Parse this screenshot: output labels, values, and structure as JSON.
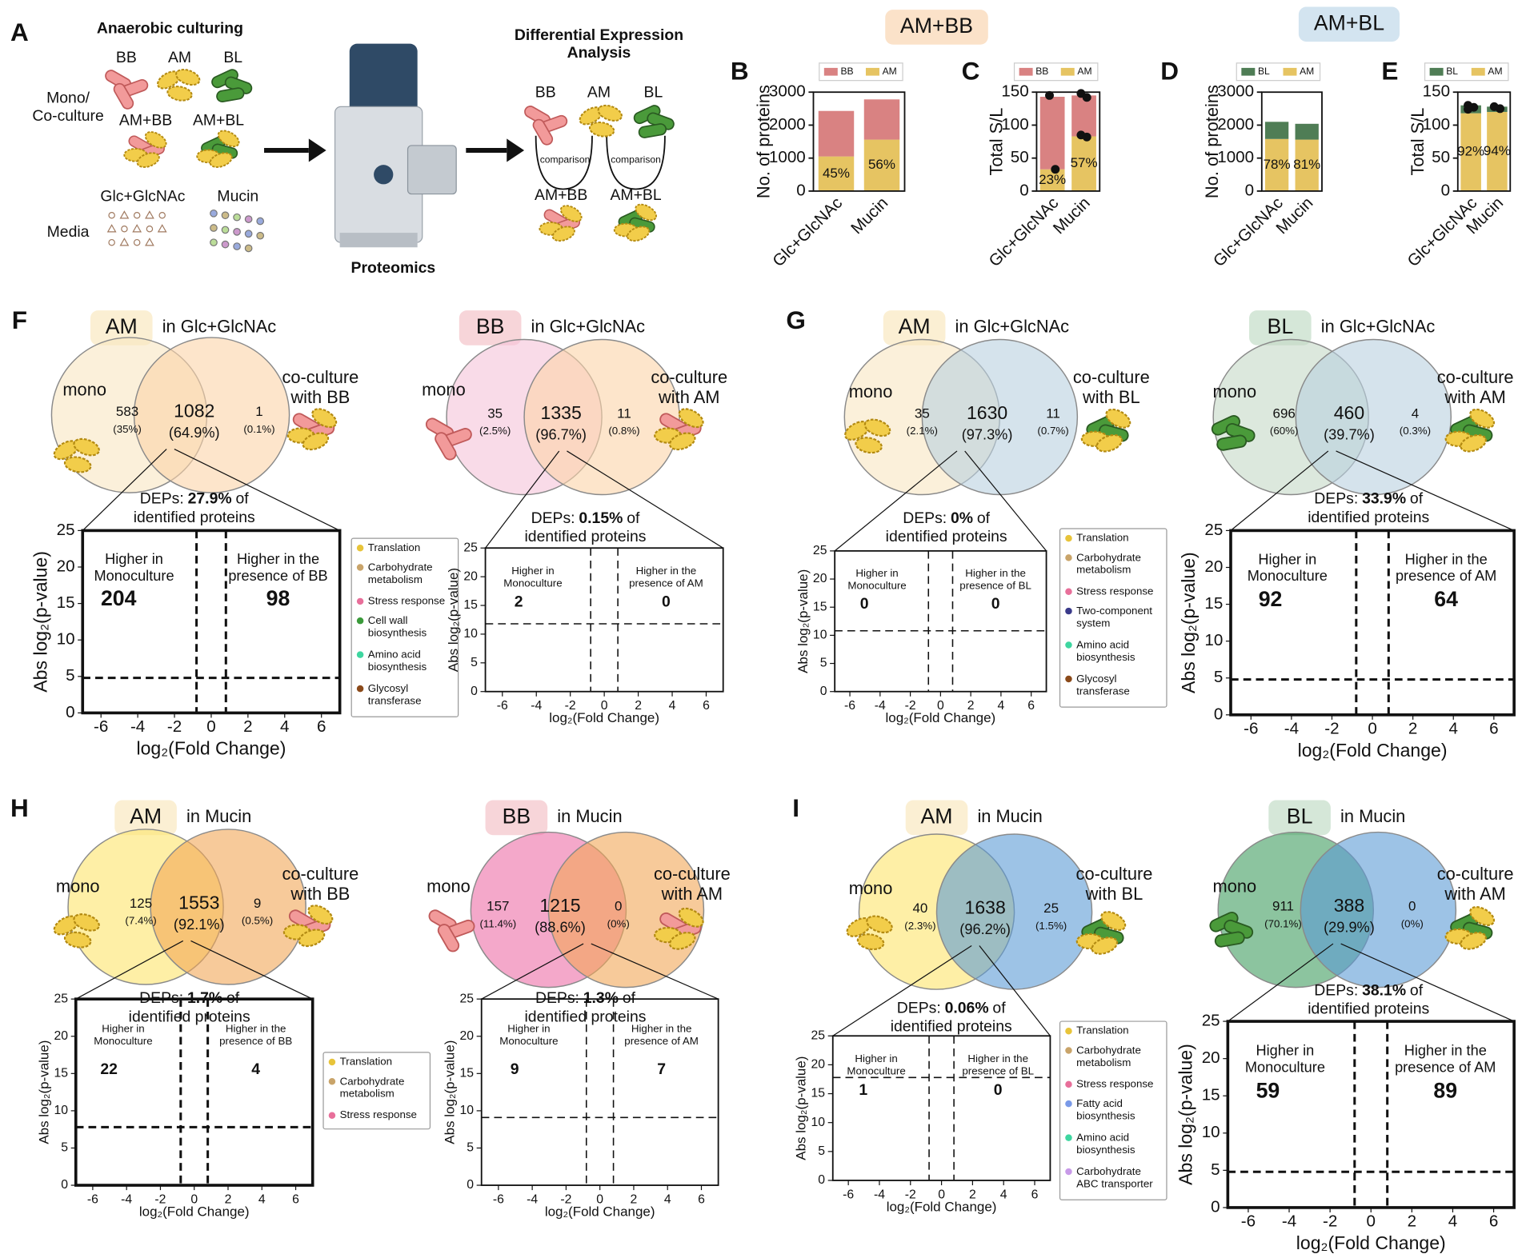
{
  "panel_letters": [
    "A",
    "B",
    "C",
    "D",
    "E",
    "F",
    "G",
    "H",
    "I"
  ],
  "headers": [
    "AM+BB",
    "AM+BL"
  ],
  "panel_a": {
    "culturing_title": "Anaerobic culturing",
    "mono_labels": [
      "BB",
      "AM",
      "BL"
    ],
    "culture_label": "Mono/\nCo-culture",
    "co_labels": [
      "AM+BB",
      "AM+BL"
    ],
    "media_labels": [
      "Glc+GlcNAc",
      "Mucin"
    ],
    "media_label": "Media",
    "proteomics": "Proteomics",
    "dea_title": "Differential Expression\nAnalysis",
    "dea_mono": [
      "BB",
      "AM",
      "BL"
    ],
    "comparison": [
      "comparison",
      "comparison"
    ],
    "dea_co": [
      "AM+BB",
      "AM+BL"
    ]
  },
  "chart_data": [
    {
      "type": "bar",
      "ylabel": "No. of proteins",
      "categories": [
        "Glc+GlcNAc",
        "Mucin"
      ],
      "series": [
        {
          "name": "BB",
          "color": "#d98282",
          "values": [
            1380,
            1220
          ]
        },
        {
          "name": "AM",
          "color": "#e6c462",
          "values": [
            1050,
            1560
          ]
        }
      ],
      "percent_labels": [
        "45%",
        "56%"
      ],
      "ylim": [
        0,
        3000
      ],
      "yticks": [
        0,
        1000,
        2000,
        3000
      ]
    },
    {
      "type": "bar",
      "ylabel": "Total S/L",
      "categories": [
        "Glc+GlcNAc",
        "Mucin"
      ],
      "series": [
        {
          "name": "BB",
          "color": "#d98282",
          "values": [
            110,
            62
          ]
        },
        {
          "name": "AM",
          "color": "#e6c462",
          "values": [
            33,
            83
          ]
        }
      ],
      "percent_labels": [
        "23%",
        "57%"
      ],
      "replicates": [
        [
          145,
          33
        ],
        [
          148,
          142,
          85,
          82
        ]
      ],
      "ylim": [
        0,
        150
      ],
      "yticks": [
        0,
        50,
        100,
        150
      ]
    },
    {
      "type": "bar",
      "ylabel": "No. of proteins",
      "categories": [
        "Glc+GlcNAc",
        "Mucin"
      ],
      "series": [
        {
          "name": "BL",
          "color": "#4f7d55",
          "values": [
            520,
            480
          ]
        },
        {
          "name": "AM",
          "color": "#e6c462",
          "values": [
            1580,
            1560
          ]
        }
      ],
      "percent_labels": [
        "78%",
        "81%"
      ],
      "ylim": [
        0,
        3000
      ],
      "yticks": [
        0,
        1000,
        2000,
        3000
      ]
    },
    {
      "type": "bar",
      "ylabel": "Total S/L",
      "categories": [
        "Glc+GlcNAc",
        "Mucin"
      ],
      "series": [
        {
          "name": "BL",
          "color": "#4f7d55",
          "values": [
            12,
            8
          ]
        },
        {
          "name": "AM",
          "color": "#e6c462",
          "values": [
            118,
            120
          ]
        }
      ],
      "percent_labels": [
        "92%",
        "94%"
      ],
      "replicates": [
        [
          130,
          127,
          124
        ],
        [
          128,
          125
        ]
      ],
      "ylim": [
        0,
        150
      ],
      "yticks": [
        0,
        50,
        100,
        150
      ]
    },
    {
      "type": "volcano",
      "xlabel": "log₂(Fold Change)",
      "ylabel": "Abs log₂(p-value)",
      "xlim": [
        -7,
        7
      ],
      "xticks": [
        -6,
        -4,
        -2,
        0,
        2,
        4,
        6
      ],
      "ylim": [
        0,
        25
      ],
      "yticks": [
        0,
        5,
        10,
        15,
        20,
        25
      ],
      "fc_thresholds": [
        -0.8,
        0.8
      ],
      "p_threshold": 4.8,
      "annotations": {
        "left": "Higher in\nMonoculture",
        "right": "Higher in the\npresence of BB",
        "left_count": 204,
        "right_count": 98
      },
      "legend": [
        {
          "name": "Translation",
          "color": "#e8c43a"
        },
        {
          "name": "Carbohydrate\nmetabolism",
          "color": "#c9a46a"
        },
        {
          "name": "Stress response",
          "color": "#e86f9a"
        },
        {
          "name": "Cell wall\nbiosynthesis",
          "color": "#3a9a3a"
        },
        {
          "name": "Amino acid\nbiosynthesis",
          "color": "#3ed6a0"
        },
        {
          "name": "Glycosyl\ntransferase",
          "color": "#8b4a1a"
        }
      ]
    },
    {
      "type": "volcano",
      "xlabel": "log₂(Fold Change)",
      "ylabel": "Abs log₂(p-value)",
      "xlim": [
        -7,
        7
      ],
      "xticks": [
        -6,
        -4,
        -2,
        0,
        2,
        4,
        6
      ],
      "ylim": [
        0,
        25
      ],
      "yticks": [
        0,
        5,
        10,
        15,
        20,
        25
      ],
      "fc_thresholds": [
        -0.8,
        0.8
      ],
      "p_threshold": 11.8,
      "annotations": {
        "left": "Higher in\nMonoculture",
        "right": "Higher in the\npresence of AM",
        "left_count": 2,
        "right_count": 0
      }
    },
    {
      "type": "volcano",
      "xlabel": "log₂(Fold Change)",
      "ylabel": "Abs log₂(p-value)",
      "xlim": [
        -7,
        7
      ],
      "xticks": [
        -6,
        -4,
        -2,
        0,
        2,
        4,
        6
      ],
      "ylim": [
        0,
        25
      ],
      "yticks": [
        0,
        5,
        10,
        15,
        20,
        25
      ],
      "fc_thresholds": [
        -0.8,
        0.8
      ],
      "p_threshold": 10.8,
      "annotations": {
        "left": "Higher in\nMonoculture",
        "right": "Higher in the\npresence of BL",
        "left_count": 0,
        "right_count": 0
      },
      "legend": [
        {
          "name": "Translation",
          "color": "#e8c43a"
        },
        {
          "name": "Carbohydrate\nmetabolism",
          "color": "#c9a46a"
        },
        {
          "name": "Stress response",
          "color": "#e86f9a"
        },
        {
          "name": "Two-component\nsystem",
          "color": "#3a3a8a"
        },
        {
          "name": "Amino acid\nbiosynthesis",
          "color": "#3ed6a0"
        },
        {
          "name": "Glycosyl\ntransferase",
          "color": "#8b4a1a"
        }
      ]
    },
    {
      "type": "volcano",
      "xlabel": "log₂(Fold Change)",
      "ylabel": "Abs log₂(p-value)",
      "xlim": [
        -7,
        7
      ],
      "xticks": [
        -6,
        -4,
        -2,
        0,
        2,
        4,
        6
      ],
      "ylim": [
        0,
        25
      ],
      "yticks": [
        0,
        5,
        10,
        15,
        20,
        25
      ],
      "fc_thresholds": [
        -0.8,
        0.8
      ],
      "p_threshold": 4.8,
      "annotations": {
        "left": "Higher in\nMonoculture",
        "right": "Higher in the\npresence of AM",
        "left_count": 92,
        "right_count": 64
      }
    },
    {
      "type": "volcano",
      "xlabel": "log₂(Fold Change)",
      "ylabel": "Abs log₂(p-value)",
      "xlim": [
        -7,
        7
      ],
      "xticks": [
        -6,
        -4,
        -2,
        0,
        2,
        4,
        6
      ],
      "ylim": [
        0,
        25
      ],
      "yticks": [
        0,
        5,
        10,
        15,
        20,
        25
      ],
      "fc_thresholds": [
        -0.8,
        0.8
      ],
      "p_threshold": 7.8,
      "annotations": {
        "left": "Higher in\nMonoculture",
        "right": "Higher in the\npresence of BB",
        "left_count": 22,
        "right_count": 4
      },
      "legend": [
        {
          "name": "Translation",
          "color": "#e8c43a"
        },
        {
          "name": "Carbohydrate\nmetabolism",
          "color": "#c9a46a"
        },
        {
          "name": "Stress response",
          "color": "#e86f9a"
        }
      ]
    },
    {
      "type": "volcano",
      "xlabel": "log₂(Fold Change)",
      "ylabel": "Abs log₂(p-value)",
      "xlim": [
        -7,
        7
      ],
      "xticks": [
        -6,
        -4,
        -2,
        0,
        2,
        4,
        6
      ],
      "ylim": [
        0,
        25
      ],
      "yticks": [
        0,
        5,
        10,
        15,
        20,
        25
      ],
      "fc_thresholds": [
        -0.8,
        0.8
      ],
      "p_threshold": 9.1,
      "annotations": {
        "left": "Higher in\nMonoculture",
        "right": "Higher in the\npresence of AM",
        "left_count": 9,
        "right_count": 7
      }
    },
    {
      "type": "volcano",
      "xlabel": "log₂(Fold Change)",
      "ylabel": "Abs log₂(p-value)",
      "xlim": [
        -7,
        7
      ],
      "xticks": [
        -6,
        -4,
        -2,
        0,
        2,
        4,
        6
      ],
      "ylim": [
        0,
        25
      ],
      "yticks": [
        0,
        5,
        10,
        15,
        20,
        25
      ],
      "fc_thresholds": [
        -0.8,
        0.8
      ],
      "p_threshold": 17.8,
      "annotations": {
        "left": "Higher in\nMonoculture",
        "right": "Higher in the\npresence of BL",
        "left_count": 1,
        "right_count": 0
      },
      "legend": [
        {
          "name": "Translation",
          "color": "#e8c43a"
        },
        {
          "name": "Carbohydrate\nmetabolism",
          "color": "#c9a46a"
        },
        {
          "name": "Stress response",
          "color": "#e86f9a"
        },
        {
          "name": "Fatty acid\nbiosynthesis",
          "color": "#7a9ae8"
        },
        {
          "name": "Amino acid\nbiosynthesis",
          "color": "#3ed6a0"
        },
        {
          "name": "Carbohydrate\nABC transporter",
          "color": "#c89ae8"
        }
      ]
    },
    {
      "type": "volcano",
      "xlabel": "log₂(Fold Change)",
      "ylabel": "Abs log₂(p-value)",
      "xlim": [
        -7,
        7
      ],
      "xticks": [
        -6,
        -4,
        -2,
        0,
        2,
        4,
        6
      ],
      "ylim": [
        0,
        25
      ],
      "yticks": [
        0,
        5,
        10,
        15,
        20,
        25
      ],
      "fc_thresholds": [
        -0.8,
        0.8
      ],
      "p_threshold": 4.8,
      "annotations": {
        "left": "Higher in\nMonoculture",
        "right": "Higher in the\npresence of AM",
        "left_count": 59,
        "right_count": 89
      }
    }
  ],
  "venns": [
    {
      "organism": "AM",
      "condition": "in Glc+GlcNAc",
      "left_label": "mono",
      "right_label": "co-culture\nwith BB",
      "left": {
        "count": 583,
        "percent": "(35%)"
      },
      "overlap": {
        "count": 1082,
        "percent": "(64.9%)"
      },
      "right": {
        "count": 1,
        "percent": "(0.1%)"
      },
      "deps": {
        "prefix": "DEPs:",
        "value": "27.9%",
        "suffix": "of",
        "line2": "identified proteins"
      },
      "colors": [
        "#f9e6c2",
        "#fcd3a8"
      ],
      "title_color": "#fbefd3"
    },
    {
      "organism": "BB",
      "condition": "in Glc+GlcNAc",
      "left_label": "mono",
      "right_label": "co-culture\nwith AM",
      "left": {
        "count": 35,
        "percent": "(2.5%)"
      },
      "overlap": {
        "count": 1335,
        "percent": "(96.7%)"
      },
      "right": {
        "count": 11,
        "percent": "(0.8%)"
      },
      "deps": {
        "prefix": "DEPs:",
        "value": "0.15%",
        "suffix": "of",
        "line2": "identified proteins"
      },
      "colors": [
        "#f5c3d8",
        "#fcd3a8"
      ],
      "title_color": "#f7d5d9"
    },
    {
      "organism": "AM",
      "condition": "in Glc+GlcNAc",
      "left_label": "mono",
      "right_label": "co-culture\nwith BL",
      "left": {
        "count": 35,
        "percent": "(2.1%)"
      },
      "overlap": {
        "count": 1630,
        "percent": "(97.3%)"
      },
      "right": {
        "count": 11,
        "percent": "(0.7%)"
      },
      "deps": {
        "prefix": "DEPs:",
        "value": "0%",
        "suffix": "of",
        "line2": "identified proteins"
      },
      "colors": [
        "#f9e6c2",
        "#b9d0e0"
      ],
      "title_color": "#fbefd3"
    },
    {
      "organism": "BL",
      "condition": "in Glc+GlcNAc",
      "left_label": "mono",
      "right_label": "co-culture\nwith AM",
      "left": {
        "count": 696,
        "percent": "(60%)"
      },
      "overlap": {
        "count": 460,
        "percent": "(39.7%)"
      },
      "right": {
        "count": 4,
        "percent": "(0.3%)"
      },
      "deps": {
        "prefix": "DEPs:",
        "value": "33.9%",
        "suffix": "of",
        "line2": "identified proteins"
      },
      "colors": [
        "#c5d8c6",
        "#b9d0e0"
      ],
      "title_color": "#d5e7d8"
    },
    {
      "organism": "AM",
      "condition": "in Mucin",
      "left_label": "mono",
      "right_label": "co-culture\nwith BB",
      "left": {
        "count": 125,
        "percent": "(7.4%)"
      },
      "overlap": {
        "count": 1553,
        "percent": "(92.1%)"
      },
      "right": {
        "count": 9,
        "percent": "(0.5%)"
      },
      "deps": {
        "prefix": "DEPs:",
        "value": "1.7%",
        "suffix": "of",
        "line2": "identified proteins"
      },
      "colors": [
        "#fde46a",
        "#f1a757"
      ],
      "title_color": "#fbefd3"
    },
    {
      "organism": "BB",
      "condition": "in Mucin",
      "left_label": "mono",
      "right_label": "co-culture\nwith AM",
      "left": {
        "count": 157,
        "percent": "(11.4%)"
      },
      "overlap": {
        "count": 1215,
        "percent": "(88.6%)"
      },
      "right": {
        "count": 0,
        "percent": "(0%)"
      },
      "deps": {
        "prefix": "DEPs:",
        "value": "1.3%",
        "suffix": "of",
        "line2": "identified proteins"
      },
      "colors": [
        "#ec6ea6",
        "#f1a757"
      ],
      "title_color": "#f7d5d9"
    },
    {
      "organism": "AM",
      "condition": "in Mucin",
      "left_label": "mono",
      "right_label": "co-culture\nwith BL",
      "left": {
        "count": 40,
        "percent": "(2.3%)"
      },
      "overlap": {
        "count": 1638,
        "percent": "(96.2%)"
      },
      "right": {
        "count": 25,
        "percent": "(1.5%)"
      },
      "deps": {
        "prefix": "DEPs:",
        "value": "0.06%",
        "suffix": "of",
        "line2": "identified proteins"
      },
      "colors": [
        "#fde46a",
        "#5b9bd5"
      ],
      "title_color": "#fbefd3"
    },
    {
      "organism": "BL",
      "condition": "in Mucin",
      "left_label": "mono",
      "right_label": "co-culture\nwith AM",
      "left": {
        "count": 911,
        "percent": "(70.1%)"
      },
      "overlap": {
        "count": 388,
        "percent": "(29.9%)"
      },
      "right": {
        "count": 0,
        "percent": "(0%)"
      },
      "deps": {
        "prefix": "DEPs:",
        "value": "38.1%",
        "suffix": "of",
        "line2": "identified proteins"
      },
      "colors": [
        "#3f9c5f",
        "#5b9bd5"
      ],
      "title_color": "#d5e7d8"
    }
  ]
}
